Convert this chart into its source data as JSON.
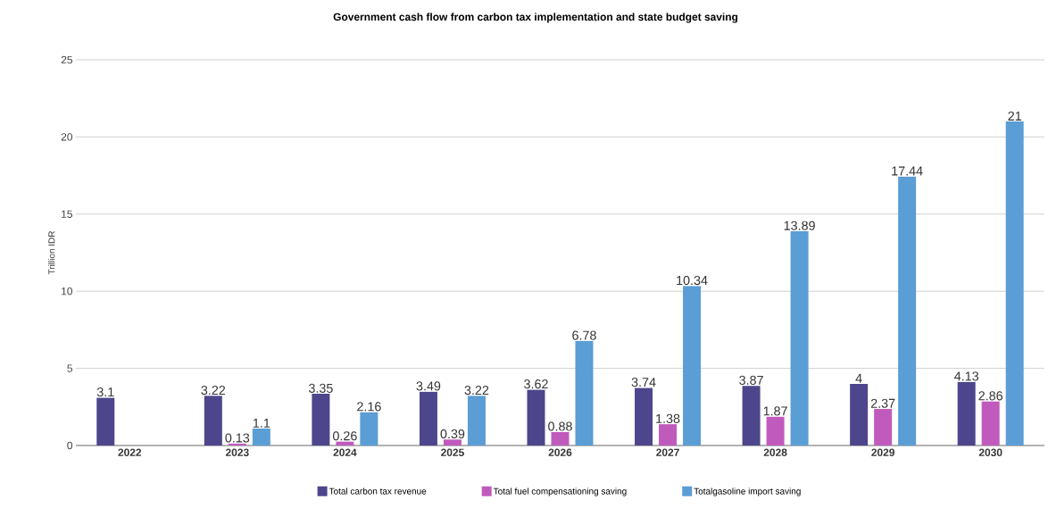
{
  "chart_data": {
    "type": "bar",
    "title": "Government cash flow from carbon tax implementation and state budget saving",
    "ylabel": "Trillion IDR",
    "categories": [
      "2022",
      "2023",
      "2024",
      "2025",
      "2026",
      "2027",
      "2028",
      "2029",
      "2030"
    ],
    "series": [
      {
        "name": "Total carbon tax revenue",
        "color": "#4e468c",
        "values": [
          3.1,
          3.22,
          3.35,
          3.49,
          3.62,
          3.74,
          3.87,
          4,
          4.13
        ]
      },
      {
        "name": "Total fuel compensationing saving",
        "color": "#c05bbd",
        "values": [
          null,
          0.13,
          0.26,
          0.39,
          0.88,
          1.38,
          1.87,
          2.37,
          2.86
        ]
      },
      {
        "name": "Totalgasoline import saving",
        "color": "#5b9dd5",
        "values": [
          null,
          1.1,
          2.16,
          3.22,
          6.78,
          10.34,
          13.89,
          17.44,
          21
        ]
      }
    ],
    "ylim": [
      0,
      25
    ],
    "yticks": [
      0,
      5,
      10,
      15,
      20,
      25
    ],
    "grid": "y",
    "legend": "bottom",
    "data_labels": true
  }
}
